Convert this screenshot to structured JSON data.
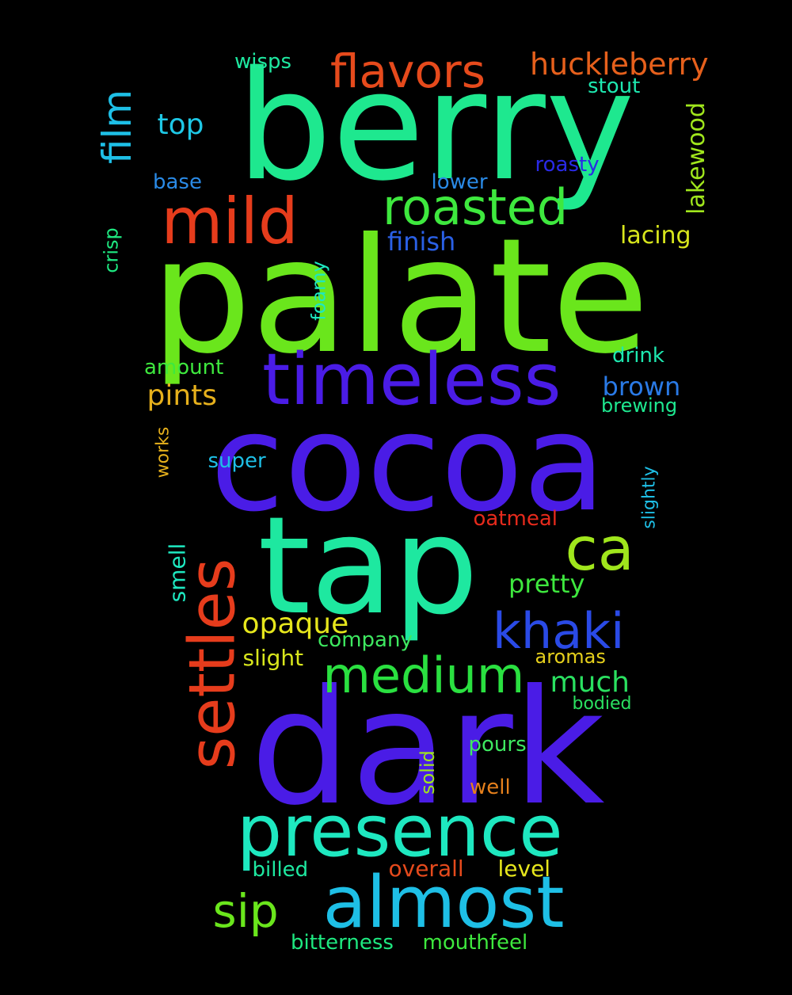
{
  "background": "#000000",
  "words": [
    {
      "text": "berry",
      "color": "#1ee88f"
    },
    {
      "text": "palate",
      "color": "#6ae61c"
    },
    {
      "text": "cocoa",
      "color": "#4a1ce6"
    },
    {
      "text": "tap",
      "color": "#1ee8a0"
    },
    {
      "text": "dark",
      "color": "#4a1ce6"
    },
    {
      "text": "timeless",
      "color": "#4a1ce6"
    },
    {
      "text": "presence",
      "color": "#1ee8c0"
    },
    {
      "text": "almost",
      "color": "#1ebfe6"
    },
    {
      "text": "settles",
      "color": "#e63c1c"
    },
    {
      "text": "mild",
      "color": "#e63c1c"
    },
    {
      "text": "roasted",
      "color": "#3ee83e"
    },
    {
      "text": "medium",
      "color": "#2ae040"
    },
    {
      "text": "khaki",
      "color": "#2a4ae6"
    },
    {
      "text": "ca",
      "color": "#a0e61c"
    },
    {
      "text": "flavors",
      "color": "#e64a1c"
    },
    {
      "text": "film",
      "color": "#1ebfe6"
    },
    {
      "text": "sip",
      "color": "#6ae61c"
    },
    {
      "text": "huckleberry",
      "color": "#e6601c"
    },
    {
      "text": "top",
      "color": "#1ec8e6"
    },
    {
      "text": "pints",
      "color": "#e6b01c"
    },
    {
      "text": "opaque",
      "color": "#e6e61c"
    },
    {
      "text": "much",
      "color": "#2ae060"
    },
    {
      "text": "pretty",
      "color": "#3ee83e"
    },
    {
      "text": "brown",
      "color": "#2a7ae6"
    },
    {
      "text": "finish",
      "color": "#2a60e6"
    },
    {
      "text": "lakewood",
      "color": "#a0e61c"
    },
    {
      "text": "lacing",
      "color": "#d8e61c"
    },
    {
      "text": "stout",
      "color": "#1ee8b0"
    },
    {
      "text": "wisps",
      "color": "#1ee8a0"
    },
    {
      "text": "roasty",
      "color": "#2a2ae6"
    },
    {
      "text": "lower",
      "color": "#2a8ae6"
    },
    {
      "text": "base",
      "color": "#2a8ae6"
    },
    {
      "text": "crisp",
      "color": "#1ee880"
    },
    {
      "text": "foamy",
      "color": "#1ee8c0"
    },
    {
      "text": "drink",
      "color": "#1ee8b0"
    },
    {
      "text": "amount",
      "color": "#3ee83e"
    },
    {
      "text": "brewing",
      "color": "#1ee890"
    },
    {
      "text": "works",
      "color": "#e6b01c"
    },
    {
      "text": "super",
      "color": "#1ebfe6"
    },
    {
      "text": "slightly",
      "color": "#1ebfe6"
    },
    {
      "text": "oatmeal",
      "color": "#e62a1c"
    },
    {
      "text": "smell",
      "color": "#1ee8c0"
    },
    {
      "text": "company",
      "color": "#3ee860"
    },
    {
      "text": "slight",
      "color": "#d8e61c"
    },
    {
      "text": "aromas",
      "color": "#e6d01c"
    },
    {
      "text": "bodied",
      "color": "#2ae060"
    },
    {
      "text": "pours",
      "color": "#3ee860"
    },
    {
      "text": "solid",
      "color": "#a0e61c"
    },
    {
      "text": "well",
      "color": "#e6801c"
    },
    {
      "text": "billed",
      "color": "#1ee8a0"
    },
    {
      "text": "overall",
      "color": "#e64a1c"
    },
    {
      "text": "level",
      "color": "#e6e61c"
    },
    {
      "text": "bitterness",
      "color": "#1ee880"
    },
    {
      "text": "mouthfeel",
      "color": "#3ee83e"
    }
  ]
}
